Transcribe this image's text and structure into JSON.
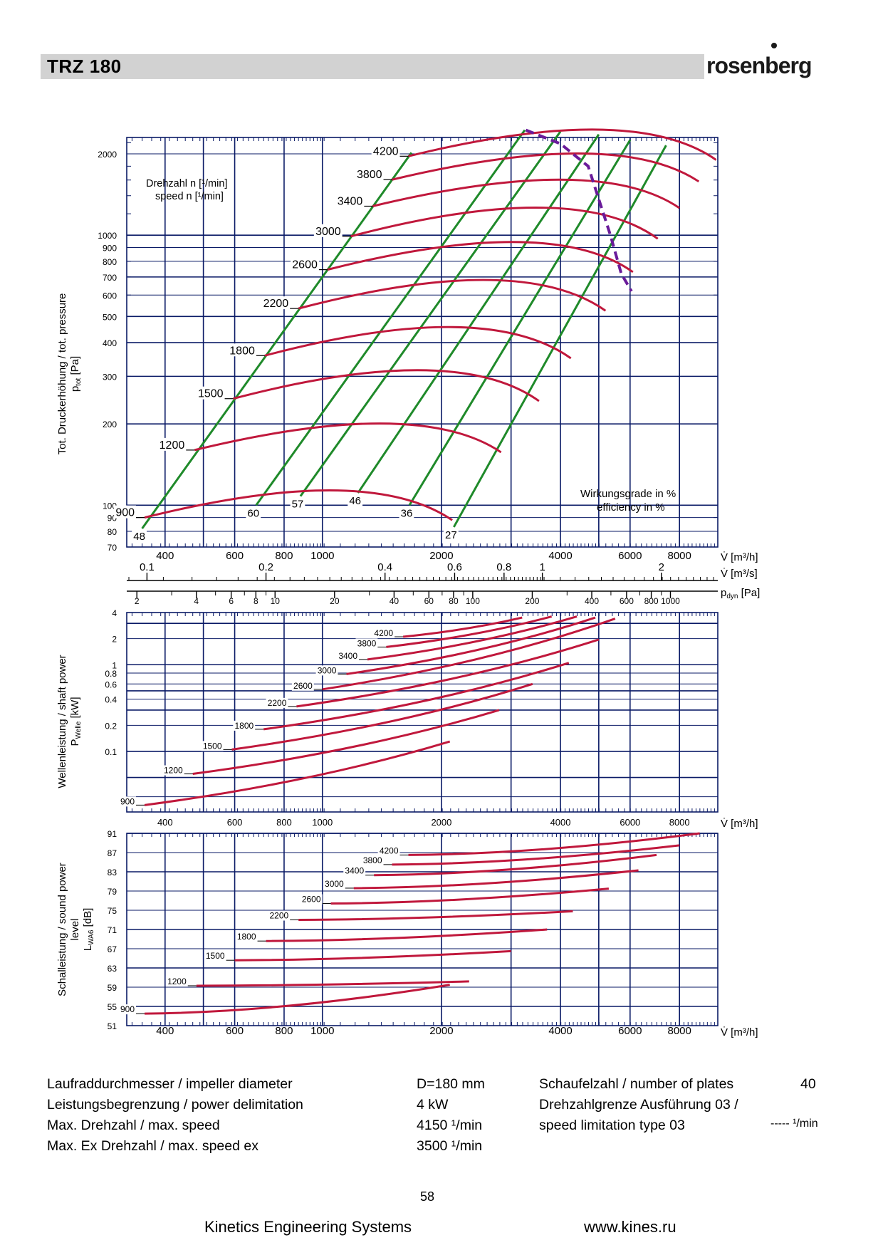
{
  "header": {
    "title": "TRZ 180",
    "logo": "rosenberg"
  },
  "colors": {
    "curve": "#c0183c",
    "efficiency": "#1f8a2a",
    "grid": "#0a1a66",
    "limit": "#6a1b9a"
  },
  "chart_data": [
    {
      "type": "line",
      "ylabel_1": "Tot. Druckerhöhung / tot. pressure",
      "ylabel_2": "p",
      "ylabel_2_sub": "tot",
      "ylabel_2_unit": "[Pa]",
      "x_axis_label": "V̇ [m³/h]",
      "x2_label": "V̇ [m³/s]",
      "x3_label": "p",
      "x3_sub": "dyn",
      "x3_unit": "[Pa]",
      "speed_label_1": "Drehzahl n [¹/min]",
      "speed_label_2": "speed n [¹/min]",
      "eff_label_1": "Wirkungsgrade in %",
      "eff_label_2": "efficiency in %",
      "x_scale": "log",
      "y_scale": "log",
      "xlim": [
        320,
        10000
      ],
      "ylim": [
        70,
        2300
      ],
      "x_ticks": [
        "400",
        "600",
        "800",
        "1000",
        "2000",
        "4000",
        "6000",
        "8000"
      ],
      "y_ticks": [
        "2000",
        "1000",
        "900",
        "800",
        "700",
        "600",
        "500",
        "400",
        "300",
        "200",
        "100",
        "90",
        "80",
        "70"
      ],
      "x2_ticks": [
        "0.1",
        "0.2",
        "0.4",
        "0.6",
        "0.8",
        "1",
        "2"
      ],
      "x3_ticks": [
        "2",
        "4",
        "6",
        "8",
        "10",
        "20",
        "40",
        "60",
        "80",
        "100",
        "200",
        "400",
        "600",
        "800",
        "1000"
      ],
      "speed_curves": [
        {
          "n": "4200",
          "start": [
            1650,
            1960
          ],
          "peak": [
            5400,
            2450
          ],
          "end": [
            9900,
            1900
          ]
        },
        {
          "n": "3800",
          "start": [
            1500,
            1605
          ],
          "peak": [
            4900,
            2000
          ],
          "end": [
            8950,
            1580
          ]
        },
        {
          "n": "3400",
          "start": [
            1340,
            1280
          ],
          "peak": [
            4400,
            1600
          ],
          "end": [
            8000,
            1260
          ]
        },
        {
          "n": "3000",
          "start": [
            1180,
            990
          ],
          "peak": [
            3850,
            1260
          ],
          "end": [
            7050,
            970
          ]
        },
        {
          "n": "2600",
          "start": [
            1030,
            745
          ],
          "peak": [
            3350,
            940
          ],
          "end": [
            6100,
            730
          ]
        },
        {
          "n": "2200",
          "start": [
            870,
            535
          ],
          "peak": [
            2830,
            680
          ],
          "end": [
            5200,
            525
          ]
        },
        {
          "n": "1800",
          "start": [
            715,
            358
          ],
          "peak": [
            2310,
            455
          ],
          "end": [
            4250,
            350
          ]
        },
        {
          "n": "1500",
          "start": [
            595,
            248
          ],
          "peak": [
            1930,
            315
          ],
          "end": [
            3530,
            243
          ]
        },
        {
          "n": "1200",
          "start": [
            475,
            160
          ],
          "peak": [
            1550,
            200
          ],
          "end": [
            2830,
            157
          ]
        },
        {
          "n": "900",
          "start": [
            355,
            90
          ],
          "peak": [
            1160,
            113
          ],
          "end": [
            2130,
            88
          ]
        }
      ],
      "efficiency_lines": [
        {
          "eta": "48",
          "from": [
            350,
            82
          ],
          "to": [
            1680,
            2020
          ]
        },
        {
          "eta": "60",
          "from": [
            680,
            100
          ],
          "to": [
            3250,
            2450
          ]
        },
        {
          "eta": "57",
          "from": [
            880,
            108
          ],
          "to": [
            4000,
            2420
          ]
        },
        {
          "eta": "46",
          "from": [
            1230,
            111
          ],
          "to": [
            5000,
            2360
          ]
        },
        {
          "eta": "36",
          "from": [
            1660,
            100
          ],
          "to": [
            6000,
            2250
          ]
        },
        {
          "eta": "27",
          "from": [
            2150,
            83
          ],
          "to": [
            7400,
            2150
          ]
        }
      ],
      "speed_limit": [
        [
          3270,
          2450
        ],
        [
          4000,
          2180
        ],
        [
          4700,
          1800
        ],
        [
          5350,
          1000
        ],
        [
          5700,
          720
        ],
        [
          6050,
          620
        ]
      ]
    },
    {
      "type": "line",
      "ylabel_1": "Wellenleistung / shaft power",
      "ylabel_2": "P",
      "ylabel_2_sub": "Welle",
      "ylabel_2_unit": "[kW]",
      "x_axis_label": "V̇ [m³/h]",
      "x_scale": "log",
      "y_scale": "log",
      "xlim": [
        320,
        10000
      ],
      "ylim": [
        0.02,
        4
      ],
      "x_ticks": [
        "400",
        "600",
        "800",
        "1000",
        "2000",
        "4000",
        "6000",
        "8000"
      ],
      "y_ticks": [
        "4",
        "2",
        "1",
        "0.8",
        "0.6",
        "0.4",
        "0.2",
        "0.1"
      ],
      "series": [
        {
          "n": "4200",
          "from": [
            1600,
            2.1
          ],
          "to": [
            3200,
            3.5
          ]
        },
        {
          "n": "3800",
          "from": [
            1450,
            1.6
          ],
          "to": [
            3800,
            3.6
          ]
        },
        {
          "n": "3400",
          "from": [
            1300,
            1.15
          ],
          "to": [
            4400,
            3.6
          ]
        },
        {
          "n": "3000",
          "from": [
            1150,
            0.78
          ],
          "to": [
            4900,
            3.5
          ]
        },
        {
          "n": "2600",
          "from": [
            1000,
            0.52
          ],
          "to": [
            5500,
            3.4
          ]
        },
        {
          "n": "2200",
          "from": [
            860,
            0.33
          ],
          "to": [
            5000,
            1.95
          ]
        },
        {
          "n": "1800",
          "from": [
            710,
            0.18
          ],
          "to": [
            4200,
            1.05
          ]
        },
        {
          "n": "1500",
          "from": [
            590,
            0.105
          ],
          "to": [
            3400,
            0.6
          ]
        },
        {
          "n": "1200",
          "from": [
            470,
            0.055
          ],
          "to": [
            2800,
            0.3
          ]
        },
        {
          "n": "900",
          "from": [
            355,
            0.024
          ],
          "to": [
            2100,
            0.13
          ]
        }
      ]
    },
    {
      "type": "line",
      "ylabel_1": "Schalleistung / sound power",
      "ylabel_1b": "level",
      "ylabel_2": "L",
      "ylabel_2_sub": "WA6",
      "ylabel_2_unit": "[dB]",
      "x_axis_label": "V̇ [m³/h]",
      "x_scale": "log",
      "xlim": [
        320,
        10000
      ],
      "ylim": [
        51,
        91
      ],
      "x_ticks": [
        "400",
        "600",
        "800",
        "1000",
        "2000",
        "4000",
        "6000",
        "8000"
      ],
      "y_ticks": [
        "91",
        "87",
        "83",
        "79",
        "75",
        "71",
        "67",
        "63",
        "59",
        "55",
        "51"
      ],
      "series": [
        {
          "n": "4200",
          "from": [
            1650,
            86.5
          ],
          "to": [
            9000,
            91
          ]
        },
        {
          "n": "3800",
          "from": [
            1500,
            84.5
          ],
          "to": [
            8000,
            88.5
          ]
        },
        {
          "n": "3400",
          "from": [
            1350,
            82.3
          ],
          "to": [
            7000,
            86.5
          ]
        },
        {
          "n": "3000",
          "from": [
            1200,
            79.6
          ],
          "to": [
            6300,
            83.3
          ]
        },
        {
          "n": "2600",
          "from": [
            1050,
            76.4
          ],
          "to": [
            5300,
            79.5
          ]
        },
        {
          "n": "2200",
          "from": [
            870,
            73
          ],
          "to": [
            4300,
            74.8
          ]
        },
        {
          "n": "1800",
          "from": [
            720,
            68.6
          ],
          "to": [
            3700,
            71
          ]
        },
        {
          "n": "1500",
          "from": [
            600,
            64.6
          ],
          "to": [
            3000,
            66.5
          ]
        },
        {
          "n": "1200",
          "from": [
            480,
            59.3
          ],
          "to": [
            2350,
            60.2
          ]
        },
        {
          "n": "900",
          "from": [
            355,
            53.5
          ],
          "to": [
            2100,
            59.5
          ]
        }
      ]
    }
  ],
  "specs": {
    "impeller_label": "Laufraddurchmesser / impeller diameter",
    "impeller_value": "D=180 mm",
    "power_label": "Leistungsbegrenzung / power delimitation",
    "power_value": "4 kW",
    "speed_label": "Max. Drehzahl / max. speed",
    "speed_value": "4150 ¹/min",
    "speedex_label": "Max. Ex Drehzahl / max. speed ex",
    "speedex_value": "3500 ¹/min",
    "plates_label": "Schaufelzahl / number of plates",
    "plates_value": "40",
    "limit_label_1": "Drehzahlgrenze Ausführung 03 /",
    "limit_label_2": "speed limitation type 03",
    "limit_value": "----- ¹/min"
  },
  "footer": {
    "page_number": "58",
    "company": "Kinetics Engineering Systems",
    "website": "www.kines.ru"
  }
}
